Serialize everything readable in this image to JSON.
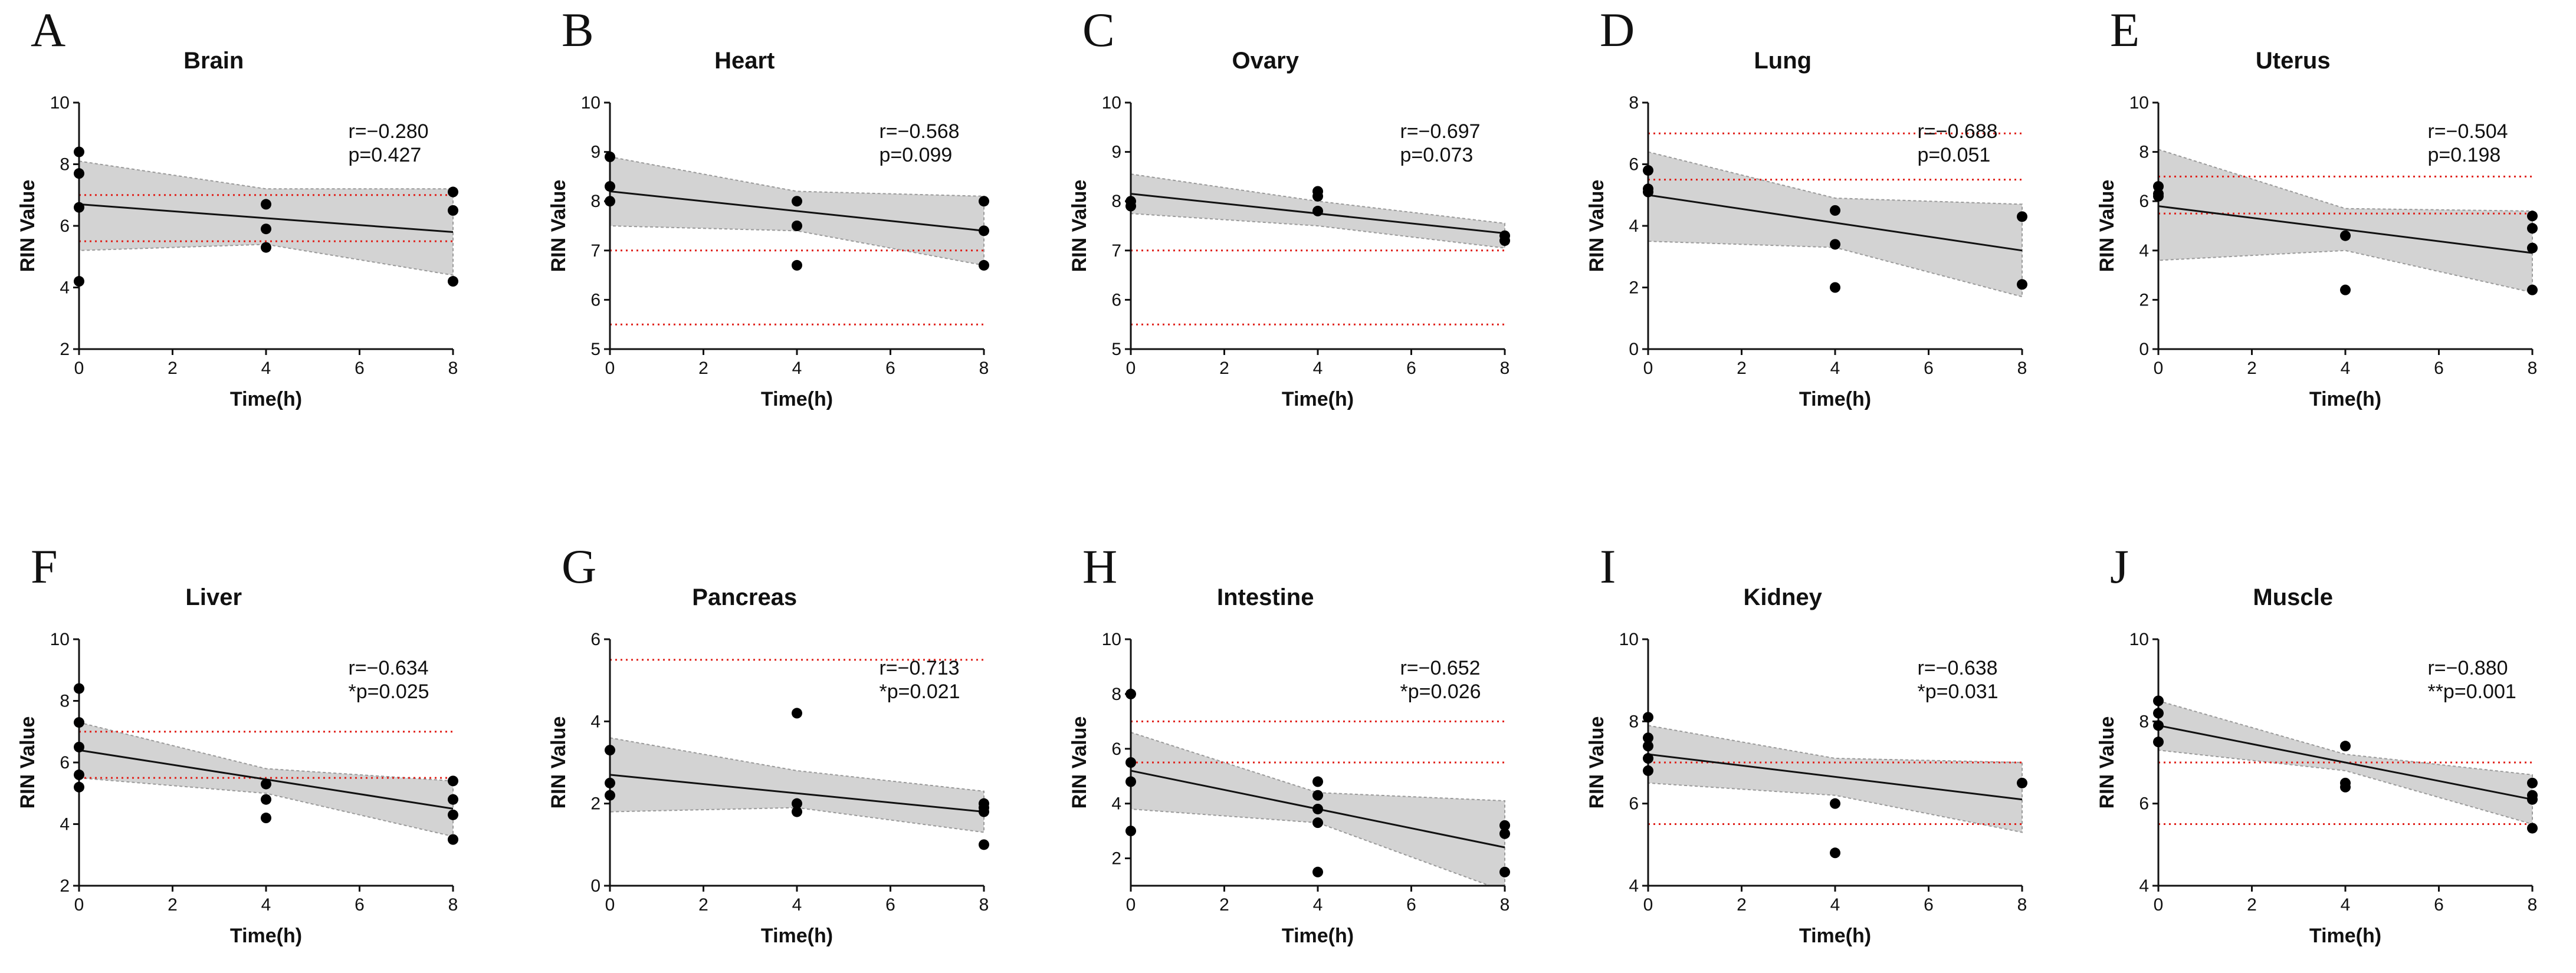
{
  "chart_data": [
    {
      "type": "scatter",
      "panel": "A",
      "title": "Brain",
      "xlabel": "Time(h)",
      "ylabel": "RIN Value",
      "xlim": [
        0,
        8
      ],
      "ylim": [
        2,
        10
      ],
      "xticks": [
        0,
        2,
        4,
        6,
        8
      ],
      "yticks": [
        2,
        4,
        6,
        8,
        10
      ],
      "points": [
        [
          0,
          8.4
        ],
        [
          0,
          7.7
        ],
        [
          0,
          6.6
        ],
        [
          0,
          4.2
        ],
        [
          4,
          6.7
        ],
        [
          4,
          5.9
        ],
        [
          4,
          5.3
        ],
        [
          8,
          7.1
        ],
        [
          8,
          6.5
        ],
        [
          8,
          4.2
        ]
      ],
      "fit": [
        [
          0,
          6.7
        ],
        [
          8,
          5.8
        ]
      ],
      "ci_upper": [
        [
          0,
          8.1
        ],
        [
          4,
          7.2
        ],
        [
          8,
          7.2
        ]
      ],
      "ci_lower": [
        [
          0,
          5.2
        ],
        [
          4,
          5.4
        ],
        [
          8,
          4.4
        ]
      ],
      "ref_lines": [
        7,
        5.5
      ],
      "r_text": "r=−0.280",
      "p_text": "p=0.427"
    },
    {
      "type": "scatter",
      "panel": "B",
      "title": "Heart",
      "xlabel": "Time(h)",
      "ylabel": "RIN Value",
      "xlim": [
        0,
        8
      ],
      "ylim": [
        5,
        10
      ],
      "xticks": [
        0,
        2,
        4,
        6,
        8
      ],
      "yticks": [
        5,
        6,
        7,
        8,
        9,
        10
      ],
      "points": [
        [
          0,
          8.9
        ],
        [
          0,
          8.3
        ],
        [
          0,
          8.0
        ],
        [
          4,
          8.0
        ],
        [
          4,
          7.5
        ],
        [
          4,
          6.7
        ],
        [
          8,
          8.0
        ],
        [
          8,
          7.4
        ],
        [
          8,
          6.7
        ]
      ],
      "fit": [
        [
          0,
          8.2
        ],
        [
          8,
          7.4
        ]
      ],
      "ci_upper": [
        [
          0,
          8.9
        ],
        [
          4,
          8.2
        ],
        [
          8,
          8.1
        ]
      ],
      "ci_lower": [
        [
          0,
          7.5
        ],
        [
          4,
          7.4
        ],
        [
          8,
          6.7
        ]
      ],
      "ref_lines": [
        7,
        5.5
      ],
      "r_text": "r=−0.568",
      "p_text": "p=0.099"
    },
    {
      "type": "scatter",
      "panel": "C",
      "title": "Ovary",
      "xlabel": "Time(h)",
      "ylabel": "RIN Value",
      "xlim": [
        0,
        8
      ],
      "ylim": [
        5,
        10
      ],
      "xticks": [
        0,
        2,
        4,
        6,
        8
      ],
      "yticks": [
        5,
        6,
        7,
        8,
        9,
        10
      ],
      "points": [
        [
          0,
          8.0
        ],
        [
          0,
          7.9
        ],
        [
          4,
          8.2
        ],
        [
          4,
          8.1
        ],
        [
          4,
          7.8
        ],
        [
          8,
          7.3
        ],
        [
          8,
          7.2
        ]
      ],
      "fit": [
        [
          0,
          8.15
        ],
        [
          8,
          7.35
        ]
      ],
      "ci_upper": [
        [
          0,
          8.55
        ],
        [
          4,
          8.0
        ],
        [
          8,
          7.55
        ]
      ],
      "ci_lower": [
        [
          0,
          7.75
        ],
        [
          4,
          7.5
        ],
        [
          8,
          7.05
        ]
      ],
      "ref_lines": [
        7,
        5.5
      ],
      "r_text": "r=−0.697",
      "p_text": "p=0.073"
    },
    {
      "type": "scatter",
      "panel": "D",
      "title": "Lung",
      "xlabel": "Time(h)",
      "ylabel": "RIN Value",
      "xlim": [
        0,
        8
      ],
      "ylim": [
        0,
        8
      ],
      "xticks": [
        0,
        2,
        4,
        6,
        8
      ],
      "yticks": [
        0,
        2,
        4,
        6,
        8
      ],
      "points": [
        [
          0,
          5.8
        ],
        [
          0,
          5.2
        ],
        [
          0,
          5.1
        ],
        [
          4,
          4.5
        ],
        [
          4,
          3.4
        ],
        [
          4,
          2.0
        ],
        [
          8,
          4.3
        ],
        [
          8,
          2.1
        ]
      ],
      "fit": [
        [
          0,
          5.0
        ],
        [
          8,
          3.2
        ]
      ],
      "ci_upper": [
        [
          0,
          6.4
        ],
        [
          4,
          4.9
        ],
        [
          8,
          4.7
        ]
      ],
      "ci_lower": [
        [
          0,
          3.5
        ],
        [
          4,
          3.3
        ],
        [
          8,
          1.7
        ]
      ],
      "ref_lines": [
        7,
        5.5
      ],
      "r_text": "r=−0.688",
      "p_text": "p=0.051"
    },
    {
      "type": "scatter",
      "panel": "E",
      "title": "Uterus",
      "xlabel": "Time(h)",
      "ylabel": "RIN Value",
      "xlim": [
        0,
        8
      ],
      "ylim": [
        0,
        10
      ],
      "xticks": [
        0,
        2,
        4,
        6,
        8
      ],
      "yticks": [
        0,
        2,
        4,
        6,
        8,
        10
      ],
      "points": [
        [
          0,
          6.6
        ],
        [
          0,
          6.3
        ],
        [
          0,
          6.2
        ],
        [
          4,
          4.6
        ],
        [
          4,
          2.4
        ],
        [
          8,
          5.4
        ],
        [
          8,
          4.9
        ],
        [
          8,
          4.1
        ],
        [
          8,
          2.4
        ]
      ],
      "fit": [
        [
          0,
          5.8
        ],
        [
          8,
          3.9
        ]
      ],
      "ci_upper": [
        [
          0,
          8.1
        ],
        [
          4,
          5.7
        ],
        [
          8,
          5.6
        ]
      ],
      "ci_lower": [
        [
          0,
          3.6
        ],
        [
          4,
          4.0
        ],
        [
          8,
          2.3
        ]
      ],
      "ref_lines": [
        7,
        5.5
      ],
      "r_text": "r=−0.504",
      "p_text": "p=0.198"
    },
    {
      "type": "scatter",
      "panel": "F",
      "title": "Liver",
      "xlabel": "Time(h)",
      "ylabel": "RIN Value",
      "xlim": [
        0,
        8
      ],
      "ylim": [
        2,
        10
      ],
      "xticks": [
        0,
        2,
        4,
        6,
        8
      ],
      "yticks": [
        2,
        4,
        6,
        8,
        10
      ],
      "points": [
        [
          0,
          8.4
        ],
        [
          0,
          7.3
        ],
        [
          0,
          6.5
        ],
        [
          0,
          5.6
        ],
        [
          0,
          5.2
        ],
        [
          4,
          5.3
        ],
        [
          4,
          4.8
        ],
        [
          4,
          4.2
        ],
        [
          8,
          5.4
        ],
        [
          8,
          4.8
        ],
        [
          8,
          4.3
        ],
        [
          8,
          3.5
        ]
      ],
      "fit": [
        [
          0,
          6.4
        ],
        [
          8,
          4.5
        ]
      ],
      "ci_upper": [
        [
          0,
          7.3
        ],
        [
          4,
          5.8
        ],
        [
          8,
          5.4
        ]
      ],
      "ci_lower": [
        [
          0,
          5.5
        ],
        [
          4,
          5.0
        ],
        [
          8,
          3.6
        ]
      ],
      "ref_lines": [
        7,
        5.5
      ],
      "r_text": "r=−0.634",
      "p_text": "*p=0.025"
    },
    {
      "type": "scatter",
      "panel": "G",
      "title": "Pancreas",
      "xlabel": "Time(h)",
      "ylabel": "RIN Value",
      "xlim": [
        0,
        8
      ],
      "ylim": [
        0,
        6
      ],
      "xticks": [
        0,
        2,
        4,
        6,
        8
      ],
      "yticks": [
        0,
        2,
        4,
        6
      ],
      "points": [
        [
          0,
          3.3
        ],
        [
          0,
          2.5
        ],
        [
          0,
          2.2
        ],
        [
          4,
          4.2
        ],
        [
          4,
          2.0
        ],
        [
          4,
          1.8
        ],
        [
          8,
          2.0
        ],
        [
          8,
          1.9
        ],
        [
          8,
          1.8
        ],
        [
          8,
          1.0
        ]
      ],
      "fit": [
        [
          0,
          2.7
        ],
        [
          8,
          1.8
        ]
      ],
      "ci_upper": [
        [
          0,
          3.6
        ],
        [
          4,
          2.8
        ],
        [
          8,
          2.3
        ]
      ],
      "ci_lower": [
        [
          0,
          1.8
        ],
        [
          4,
          1.9
        ],
        [
          8,
          1.3
        ]
      ],
      "ref_lines": [
        5.5
      ],
      "r_text": "r=−0.713",
      "p_text": "*p=0.021"
    },
    {
      "type": "scatter",
      "panel": "H",
      "title": "Intestine",
      "xlabel": "Time(h)",
      "ylabel": "RIN Value",
      "xlim": [
        0,
        8
      ],
      "ylim": [
        1,
        10
      ],
      "xticks": [
        0,
        2,
        4,
        6,
        8
      ],
      "yticks": [
        2,
        4,
        6,
        8,
        10
      ],
      "points": [
        [
          0,
          8.0
        ],
        [
          0,
          5.5
        ],
        [
          0,
          4.8
        ],
        [
          0,
          3.0
        ],
        [
          4,
          4.8
        ],
        [
          4,
          4.3
        ],
        [
          4,
          3.8
        ],
        [
          4,
          3.3
        ],
        [
          4,
          1.5
        ],
        [
          8,
          3.2
        ],
        [
          8,
          2.9
        ],
        [
          8,
          1.5
        ]
      ],
      "fit": [
        [
          0,
          5.2
        ],
        [
          8,
          2.4
        ]
      ],
      "ci_upper": [
        [
          0,
          6.6
        ],
        [
          4,
          4.4
        ],
        [
          8,
          4.1
        ]
      ],
      "ci_lower": [
        [
          0,
          3.8
        ],
        [
          4,
          3.3
        ],
        [
          8,
          0.8
        ]
      ],
      "ref_lines": [
        7,
        5.5
      ],
      "r_text": "r=−0.652",
      "p_text": "*p=0.026"
    },
    {
      "type": "scatter",
      "panel": "I",
      "title": "Kidney",
      "xlabel": "Time(h)",
      "ylabel": "RIN Value",
      "xlim": [
        0,
        8
      ],
      "ylim": [
        4,
        10
      ],
      "xticks": [
        0,
        2,
        4,
        6,
        8
      ],
      "yticks": [
        4,
        6,
        8,
        10
      ],
      "points": [
        [
          0,
          8.1
        ],
        [
          0,
          7.6
        ],
        [
          0,
          7.4
        ],
        [
          0,
          7.1
        ],
        [
          0,
          6.8
        ],
        [
          4,
          6.0
        ],
        [
          4,
          4.8
        ],
        [
          8,
          6.5
        ]
      ],
      "fit": [
        [
          0,
          7.2
        ],
        [
          8,
          6.1
        ]
      ],
      "ci_upper": [
        [
          0,
          7.9
        ],
        [
          4,
          7.1
        ],
        [
          8,
          7.0
        ]
      ],
      "ci_lower": [
        [
          0,
          6.5
        ],
        [
          4,
          6.2
        ],
        [
          8,
          5.3
        ]
      ],
      "ref_lines": [
        7,
        5.5
      ],
      "r_text": "r=−0.638",
      "p_text": "*p=0.031"
    },
    {
      "type": "scatter",
      "panel": "J",
      "title": "Muscle",
      "xlabel": "Time(h)",
      "ylabel": "RIN Value",
      "xlim": [
        0,
        8
      ],
      "ylim": [
        4,
        10
      ],
      "xticks": [
        0,
        2,
        4,
        6,
        8
      ],
      "yticks": [
        4,
        6,
        8,
        10
      ],
      "points": [
        [
          0,
          8.5
        ],
        [
          0,
          8.2
        ],
        [
          0,
          7.9
        ],
        [
          0,
          7.5
        ],
        [
          4,
          7.4
        ],
        [
          4,
          6.5
        ],
        [
          4,
          6.4
        ],
        [
          8,
          6.5
        ],
        [
          8,
          6.2
        ],
        [
          8,
          6.1
        ],
        [
          8,
          5.4
        ]
      ],
      "fit": [
        [
          0,
          7.9
        ],
        [
          8,
          6.1
        ]
      ],
      "ci_upper": [
        [
          0,
          8.5
        ],
        [
          4,
          7.2
        ],
        [
          8,
          6.7
        ]
      ],
      "ci_lower": [
        [
          0,
          7.3
        ],
        [
          4,
          6.8
        ],
        [
          8,
          5.5
        ]
      ],
      "ref_lines": [
        7,
        5.5
      ],
      "r_text": "r=−0.880",
      "p_text": "**p=0.001"
    }
  ]
}
